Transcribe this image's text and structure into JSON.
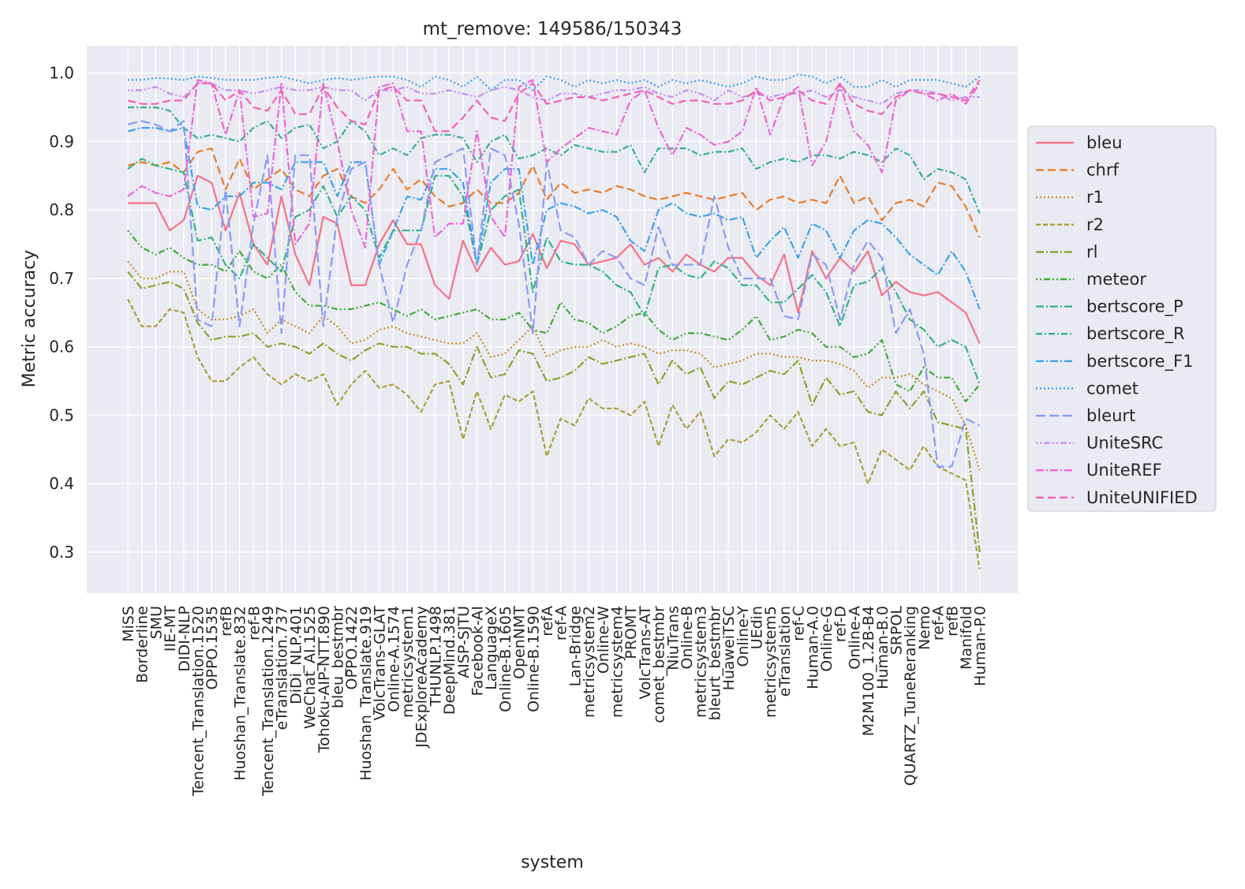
{
  "chart_data": {
    "type": "line",
    "title": "mt_remove: 149586/150343",
    "xlabel": "system",
    "ylabel": "Metric accuracy",
    "ylim": [
      0.24,
      1.04
    ],
    "yticks": [
      "0.3",
      "0.4",
      "0.5",
      "0.6",
      "0.7",
      "0.8",
      "0.9",
      "1.0"
    ],
    "grid": true,
    "legend_position": "right",
    "categories": [
      "MiSS",
      "Borderline",
      "SMU",
      "IIE-MT",
      "DIDI-NLP",
      "Tencent_Translation.1520",
      "OPPO.1535",
      "refB",
      "Huoshan_Translate.832",
      "ref-B",
      "Tencent_Translation.1249",
      "eTranslation.737",
      "DiDi_NLP.401",
      "WeChat_AI.1525",
      "Tohoku-AIP-NTT.890",
      "bleu_bestmbr",
      "OPPO.1422",
      "Huoshan_Translate.919",
      "VolcTrans-GLAT",
      "Online-A.1574",
      "metricsystem1",
      "JDExploreAcademy",
      "THUNLP.1498",
      "DeepMind.381",
      "AISP-SJTU",
      "Facebook-AI",
      "LanguageX",
      "Online-B.1605",
      "OpenNMT",
      "Online-B.1590",
      "refA",
      "ref-A",
      "Lan-Bridge",
      "metricsystem2",
      "Online-W",
      "metricsystem4",
      "PROMT",
      "VolcTrans-AT",
      "comet_bestmbr",
      "NiuTrans",
      "Online-B",
      "metricsystem3",
      "bleurt_bestmbr",
      "HuaweiTSC",
      "Online-Y",
      "UEdin",
      "metricsystem5",
      "eTranslation",
      "ref-C",
      "Human-A.0",
      "Online-G",
      "ref-D",
      "Online-A",
      "M2M100_1.2B-B4",
      "Human-B.0",
      "SRPOL",
      "QUARTZ_TuneReranking",
      "Nemo",
      "ref-A",
      "refB",
      "Manifold",
      "Human-P.0"
    ],
    "series": [
      {
        "name": "bleu",
        "color": "#f77189",
        "dash": "solid",
        "values": [
          0.81,
          0.81,
          0.81,
          0.77,
          0.785,
          0.85,
          0.84,
          0.77,
          0.825,
          0.75,
          0.72,
          0.82,
          0.735,
          0.69,
          0.79,
          0.78,
          0.69,
          0.69,
          0.75,
          0.785,
          0.75,
          0.75,
          0.69,
          0.67,
          0.755,
          0.71,
          0.745,
          0.72,
          0.725,
          0.765,
          0.715,
          0.755,
          0.75,
          0.72,
          0.725,
          0.73,
          0.75,
          0.72,
          0.73,
          0.71,
          0.735,
          0.72,
          0.71,
          0.73,
          0.73,
          0.705,
          0.69,
          0.735,
          0.65,
          0.74,
          0.7,
          0.73,
          0.71,
          0.74,
          0.675,
          0.695,
          0.68,
          0.675,
          0.68,
          0.665,
          0.65,
          0.605
        ]
      },
      {
        "name": "chrf",
        "color": "#ea7c29",
        "dash": "10,5",
        "values": [
          0.865,
          0.87,
          0.865,
          0.87,
          0.855,
          0.885,
          0.89,
          0.83,
          0.875,
          0.83,
          0.845,
          0.86,
          0.83,
          0.82,
          0.85,
          0.86,
          0.82,
          0.81,
          0.83,
          0.86,
          0.83,
          0.845,
          0.82,
          0.805,
          0.81,
          0.83,
          0.81,
          0.81,
          0.825,
          0.865,
          0.815,
          0.84,
          0.825,
          0.83,
          0.825,
          0.835,
          0.83,
          0.82,
          0.815,
          0.82,
          0.825,
          0.82,
          0.815,
          0.82,
          0.825,
          0.8,
          0.815,
          0.82,
          0.81,
          0.815,
          0.81,
          0.85,
          0.81,
          0.82,
          0.785,
          0.81,
          0.815,
          0.805,
          0.84,
          0.835,
          0.805,
          0.76
        ]
      },
      {
        "name": "r1",
        "color": "#c7901e",
        "dash": "2,3",
        "values": [
          0.725,
          0.7,
          0.7,
          0.71,
          0.71,
          0.655,
          0.64,
          0.64,
          0.645,
          0.655,
          0.62,
          0.64,
          0.63,
          0.62,
          0.645,
          0.63,
          0.605,
          0.61,
          0.625,
          0.63,
          0.62,
          0.615,
          0.61,
          0.605,
          0.605,
          0.62,
          0.585,
          0.59,
          0.61,
          0.63,
          0.585,
          0.595,
          0.6,
          0.6,
          0.61,
          0.6,
          0.605,
          0.6,
          0.59,
          0.595,
          0.595,
          0.59,
          0.57,
          0.575,
          0.58,
          0.59,
          0.59,
          0.585,
          0.585,
          0.58,
          0.58,
          0.575,
          0.565,
          0.54,
          0.555,
          0.555,
          0.56,
          0.545,
          0.535,
          0.525,
          0.485,
          0.42
        ]
      },
      {
        "name": "r2",
        "color": "#a8a03a",
        "dash": "6,3",
        "values": [
          0.67,
          0.63,
          0.63,
          0.655,
          0.65,
          0.585,
          0.55,
          0.55,
          0.57,
          0.585,
          0.56,
          0.545,
          0.56,
          0.55,
          0.56,
          0.515,
          0.545,
          0.565,
          0.54,
          0.545,
          0.53,
          0.505,
          0.545,
          0.55,
          0.465,
          0.535,
          0.48,
          0.53,
          0.52,
          0.535,
          0.44,
          0.495,
          0.485,
          0.525,
          0.51,
          0.51,
          0.5,
          0.52,
          0.455,
          0.515,
          0.48,
          0.505,
          0.44,
          0.465,
          0.46,
          0.475,
          0.5,
          0.48,
          0.505,
          0.455,
          0.48,
          0.455,
          0.46,
          0.4,
          0.45,
          0.435,
          0.42,
          0.455,
          0.425,
          0.415,
          0.405,
          0.275
        ]
      },
      {
        "name": "rl",
        "color": "#88a42b",
        "dash": "10,3,2,3",
        "values": [
          0.71,
          0.685,
          0.69,
          0.695,
          0.685,
          0.635,
          0.61,
          0.615,
          0.615,
          0.62,
          0.6,
          0.605,
          0.6,
          0.59,
          0.605,
          0.59,
          0.58,
          0.595,
          0.605,
          0.6,
          0.6,
          0.59,
          0.59,
          0.575,
          0.545,
          0.6,
          0.555,
          0.56,
          0.595,
          0.59,
          0.55,
          0.555,
          0.565,
          0.585,
          0.575,
          0.58,
          0.585,
          0.59,
          0.545,
          0.58,
          0.56,
          0.57,
          0.525,
          0.55,
          0.545,
          0.555,
          0.565,
          0.56,
          0.58,
          0.515,
          0.555,
          0.53,
          0.535,
          0.505,
          0.5,
          0.535,
          0.51,
          0.535,
          0.49,
          0.485,
          0.48,
          0.3
        ]
      },
      {
        "name": "meteor",
        "color": "#41ab36",
        "dash": "2,3,2,3,8,3",
        "values": [
          0.77,
          0.745,
          0.735,
          0.745,
          0.73,
          0.72,
          0.72,
          0.71,
          0.74,
          0.71,
          0.7,
          0.72,
          0.68,
          0.66,
          0.66,
          0.655,
          0.655,
          0.66,
          0.665,
          0.655,
          0.645,
          0.655,
          0.64,
          0.645,
          0.65,
          0.655,
          0.64,
          0.64,
          0.65,
          0.625,
          0.62,
          0.665,
          0.64,
          0.635,
          0.62,
          0.63,
          0.645,
          0.65,
          0.625,
          0.61,
          0.62,
          0.62,
          0.615,
          0.61,
          0.625,
          0.645,
          0.61,
          0.615,
          0.625,
          0.62,
          0.6,
          0.6,
          0.585,
          0.59,
          0.61,
          0.545,
          0.535,
          0.57,
          0.555,
          0.555,
          0.52,
          0.545
        ]
      },
      {
        "name": "bertscore_P",
        "color": "#34b389",
        "dash": "10,3,2,3",
        "values": [
          0.86,
          0.875,
          0.865,
          0.86,
          0.855,
          0.755,
          0.76,
          0.72,
          0.7,
          0.75,
          0.73,
          0.71,
          0.79,
          0.8,
          0.835,
          0.79,
          0.82,
          0.8,
          0.73,
          0.77,
          0.77,
          0.77,
          0.85,
          0.85,
          0.82,
          0.72,
          0.8,
          0.82,
          0.83,
          0.68,
          0.76,
          0.725,
          0.72,
          0.72,
          0.71,
          0.69,
          0.68,
          0.645,
          0.715,
          0.72,
          0.705,
          0.7,
          0.725,
          0.715,
          0.69,
          0.69,
          0.665,
          0.665,
          0.685,
          0.705,
          0.68,
          0.63,
          0.69,
          0.695,
          0.715,
          0.68,
          0.64,
          0.625,
          0.6,
          0.61,
          0.6,
          0.545
        ]
      },
      {
        "name": "bertscore_R",
        "color": "#37ad9e",
        "dash": "8,3,2,3",
        "values": [
          0.95,
          0.95,
          0.95,
          0.945,
          0.92,
          0.905,
          0.91,
          0.905,
          0.9,
          0.92,
          0.93,
          0.905,
          0.92,
          0.925,
          0.89,
          0.9,
          0.93,
          0.915,
          0.88,
          0.89,
          0.88,
          0.905,
          0.91,
          0.91,
          0.905,
          0.87,
          0.9,
          0.91,
          0.875,
          0.88,
          0.89,
          0.88,
          0.895,
          0.89,
          0.885,
          0.885,
          0.895,
          0.855,
          0.89,
          0.89,
          0.89,
          0.88,
          0.885,
          0.885,
          0.89,
          0.86,
          0.87,
          0.875,
          0.87,
          0.88,
          0.88,
          0.875,
          0.885,
          0.88,
          0.87,
          0.89,
          0.88,
          0.845,
          0.86,
          0.855,
          0.845,
          0.795
        ]
      },
      {
        "name": "bertscore_F1",
        "color": "#3ba3ec",
        "dash": "10,3,2,3",
        "values": [
          0.915,
          0.92,
          0.92,
          0.915,
          0.92,
          0.805,
          0.8,
          0.82,
          0.82,
          0.84,
          0.84,
          0.83,
          0.87,
          0.87,
          0.87,
          0.82,
          0.87,
          0.87,
          0.72,
          0.77,
          0.82,
          0.815,
          0.86,
          0.86,
          0.84,
          0.72,
          0.84,
          0.86,
          0.86,
          0.72,
          0.8,
          0.81,
          0.805,
          0.795,
          0.8,
          0.79,
          0.755,
          0.74,
          0.8,
          0.81,
          0.795,
          0.79,
          0.795,
          0.785,
          0.79,
          0.73,
          0.755,
          0.775,
          0.73,
          0.78,
          0.77,
          0.73,
          0.77,
          0.785,
          0.78,
          0.76,
          0.735,
          0.72,
          0.705,
          0.74,
          0.71,
          0.655
        ]
      },
      {
        "name": "comet",
        "color": "#3ba3ec",
        "dash": "2,3,2,3,2,3",
        "values": [
          0.99,
          0.99,
          0.993,
          0.992,
          0.99,
          0.995,
          0.993,
          0.99,
          0.99,
          0.99,
          0.993,
          0.995,
          0.99,
          0.985,
          0.99,
          0.993,
          0.99,
          0.993,
          0.995,
          0.995,
          0.99,
          0.98,
          0.995,
          0.99,
          0.98,
          0.995,
          0.975,
          0.99,
          0.99,
          0.975,
          0.995,
          0.99,
          0.98,
          0.99,
          0.985,
          0.99,
          0.985,
          0.99,
          0.98,
          0.99,
          0.985,
          0.99,
          0.985,
          0.98,
          0.985,
          0.995,
          0.99,
          0.99,
          0.998,
          0.995,
          0.985,
          0.995,
          0.98,
          0.98,
          0.99,
          0.98,
          0.99,
          0.99,
          0.99,
          0.985,
          0.98,
          0.995
        ]
      },
      {
        "name": "bleurt",
        "color": "#8b9bf5",
        "dash": "12,5",
        "values": [
          0.925,
          0.93,
          0.925,
          0.915,
          0.93,
          0.64,
          0.63,
          0.83,
          0.63,
          0.78,
          0.88,
          0.62,
          0.88,
          0.88,
          0.63,
          0.79,
          0.86,
          0.87,
          0.72,
          0.635,
          0.72,
          0.77,
          0.87,
          0.88,
          0.89,
          0.72,
          0.89,
          0.88,
          0.78,
          0.62,
          0.87,
          0.77,
          0.76,
          0.72,
          0.74,
          0.73,
          0.7,
          0.69,
          0.775,
          0.72,
          0.72,
          0.72,
          0.82,
          0.745,
          0.7,
          0.7,
          0.7,
          0.645,
          0.64,
          0.735,
          0.72,
          0.64,
          0.72,
          0.755,
          0.73,
          0.62,
          0.655,
          0.59,
          0.425,
          0.425,
          0.495,
          0.485
        ]
      },
      {
        "name": "UniteSRC",
        "color": "#c28ef4",
        "dash": "2,3,2,3,8,3",
        "values": [
          0.975,
          0.975,
          0.98,
          0.97,
          0.965,
          0.985,
          0.985,
          0.975,
          0.975,
          0.97,
          0.975,
          0.98,
          0.975,
          0.975,
          0.98,
          0.975,
          0.975,
          0.96,
          0.975,
          0.975,
          0.98,
          0.97,
          0.97,
          0.975,
          0.97,
          0.965,
          0.975,
          0.98,
          0.975,
          0.965,
          0.96,
          0.97,
          0.97,
          0.965,
          0.97,
          0.975,
          0.975,
          0.98,
          0.97,
          0.965,
          0.975,
          0.97,
          0.96,
          0.975,
          0.965,
          0.97,
          0.965,
          0.97,
          0.97,
          0.975,
          0.965,
          0.975,
          0.965,
          0.96,
          0.955,
          0.97,
          0.975,
          0.975,
          0.97,
          0.96,
          0.965,
          0.965
        ]
      },
      {
        "name": "UniteREF",
        "color": "#ee66d7",
        "dash": "10,3,2,3",
        "values": [
          0.82,
          0.835,
          0.825,
          0.82,
          0.83,
          0.99,
          0.985,
          0.91,
          0.975,
          0.79,
          0.795,
          0.985,
          0.75,
          0.78,
          0.985,
          0.9,
          0.8,
          0.745,
          0.98,
          0.985,
          0.915,
          0.915,
          0.76,
          0.78,
          0.78,
          0.915,
          0.79,
          0.76,
          0.98,
          0.99,
          0.87,
          0.89,
          0.905,
          0.92,
          0.915,
          0.91,
          0.96,
          0.975,
          0.92,
          0.88,
          0.92,
          0.91,
          0.895,
          0.9,
          0.915,
          0.98,
          0.91,
          0.965,
          0.98,
          0.865,
          0.9,
          0.985,
          0.915,
          0.895,
          0.855,
          0.96,
          0.975,
          0.97,
          0.96,
          0.97,
          0.955,
          0.985
        ]
      },
      {
        "name": "UniteUNIFIED",
        "color": "#f561b5",
        "dash": "10,5",
        "values": [
          0.96,
          0.955,
          0.955,
          0.96,
          0.96,
          0.985,
          0.985,
          0.96,
          0.975,
          0.95,
          0.945,
          0.975,
          0.94,
          0.94,
          0.98,
          0.95,
          0.93,
          0.925,
          0.975,
          0.98,
          0.96,
          0.96,
          0.915,
          0.915,
          0.935,
          0.96,
          0.935,
          0.93,
          0.97,
          0.985,
          0.955,
          0.96,
          0.965,
          0.965,
          0.96,
          0.965,
          0.97,
          0.975,
          0.965,
          0.955,
          0.96,
          0.96,
          0.955,
          0.955,
          0.96,
          0.975,
          0.96,
          0.965,
          0.975,
          0.96,
          0.955,
          0.985,
          0.955,
          0.945,
          0.94,
          0.965,
          0.975,
          0.97,
          0.97,
          0.965,
          0.96,
          0.99
        ]
      }
    ]
  }
}
